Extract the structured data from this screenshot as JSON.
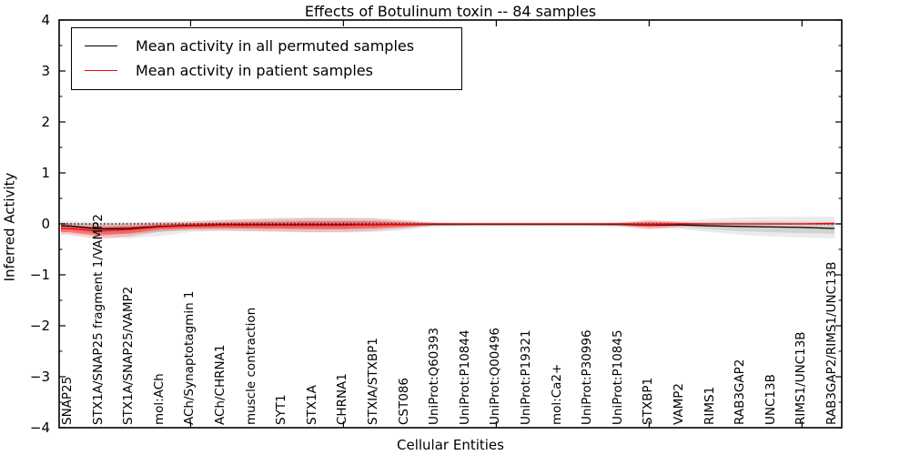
{
  "title": "Effects of Botulinum toxin -- 84 samples",
  "legend": {
    "items": [
      {
        "label": "Mean activity in all permuted samples",
        "color": "#000000"
      },
      {
        "label": "Mean activity in patient samples",
        "color": "#ff0000"
      }
    ]
  },
  "chart_data": {
    "type": "line",
    "title": "Effects of Botulinum toxin -- 84 samples",
    "xlabel": "Cellular Entities",
    "ylabel": "Inferred Activity",
    "ylim": [
      -4,
      4
    ],
    "yticks": [
      4,
      3,
      2,
      1,
      0,
      -1,
      -2,
      -3,
      -4
    ],
    "xtick_values": [
      5,
      10,
      15,
      20,
      25
    ],
    "grid": false,
    "legend_position": "upper left",
    "zero_line": {
      "y": 0,
      "style": "dotted",
      "color": "#000000"
    },
    "categories": [
      "SNAP25",
      "STX1A/SNAP25 fragment 1/VAMP2",
      "STX1A/SNAP25/VAMP2",
      "mol:ACh",
      "ACh/Synaptotagmin 1",
      "ACh/CHRNA1",
      "muscle contraction",
      "SYT1",
      "STX1A",
      "CHRNA1",
      "STXIA/STXBP1",
      "CST086",
      "UniProt:Q60393",
      "UniProt:P10844",
      "UniProt:Q00496",
      "UniProt:P19321",
      "mol:Ca2+",
      "UniProt:P30996",
      "UniProt:P10845",
      "STXBP1",
      "VAMP2",
      "RIMS1",
      "RAB3GAP2",
      "UNC13B",
      "RIMS1/UNC13B",
      "RAB3GAP2/RIMS1/UNC13B"
    ],
    "series": [
      {
        "name": "Mean activity in all permuted samples",
        "color": "#000000",
        "band_color": "#999999",
        "values": [
          -0.04,
          -0.1,
          -0.09,
          -0.05,
          -0.03,
          -0.02,
          -0.02,
          -0.02,
          -0.02,
          -0.02,
          -0.02,
          -0.01,
          -0.01,
          -0.01,
          -0.01,
          -0.01,
          -0.01,
          -0.01,
          -0.01,
          -0.02,
          -0.02,
          -0.04,
          -0.05,
          -0.06,
          -0.07,
          -0.09
        ],
        "band_upper": [
          0.06,
          0.03,
          0.03,
          0.04,
          0.05,
          0.08,
          0.1,
          0.12,
          0.13,
          0.13,
          0.12,
          0.08,
          0.04,
          0.03,
          0.03,
          0.03,
          0.03,
          0.03,
          0.04,
          0.05,
          0.06,
          0.1,
          0.13,
          0.14,
          0.14,
          0.14
        ],
        "band_lower": [
          -0.18,
          -0.25,
          -0.28,
          -0.24,
          -0.16,
          -0.14,
          -0.15,
          -0.16,
          -0.17,
          -0.17,
          -0.16,
          -0.12,
          -0.06,
          -0.05,
          -0.05,
          -0.05,
          -0.05,
          -0.05,
          -0.06,
          -0.08,
          -0.1,
          -0.16,
          -0.22,
          -0.25,
          -0.27,
          -0.28
        ]
      },
      {
        "name": "Mean activity in patient samples",
        "color": "#ff0000",
        "band_color": "#ff0000",
        "values": [
          -0.09,
          -0.14,
          -0.11,
          -0.06,
          -0.04,
          -0.03,
          -0.03,
          -0.03,
          -0.03,
          -0.03,
          -0.02,
          -0.01,
          0,
          0,
          0,
          0,
          0,
          0,
          0,
          -0.01,
          0,
          0,
          0,
          0,
          0,
          0.01
        ],
        "band_upper": [
          0.02,
          0.0,
          0.01,
          0.03,
          0.05,
          0.07,
          0.09,
          0.1,
          0.11,
          0.11,
          0.1,
          0.06,
          0.02,
          0.01,
          0.01,
          0.01,
          0.01,
          0.01,
          0.02,
          0.08,
          0.04,
          0.01,
          0.01,
          0.01,
          0.01,
          0.02
        ],
        "band_lower": [
          -0.22,
          -0.3,
          -0.25,
          -0.15,
          -0.13,
          -0.13,
          -0.14,
          -0.15,
          -0.16,
          -0.16,
          -0.14,
          -0.09,
          -0.03,
          -0.02,
          -0.02,
          -0.02,
          -0.02,
          -0.02,
          -0.04,
          -0.11,
          -0.06,
          -0.02,
          -0.02,
          -0.02,
          -0.02,
          -0.03
        ]
      }
    ]
  }
}
